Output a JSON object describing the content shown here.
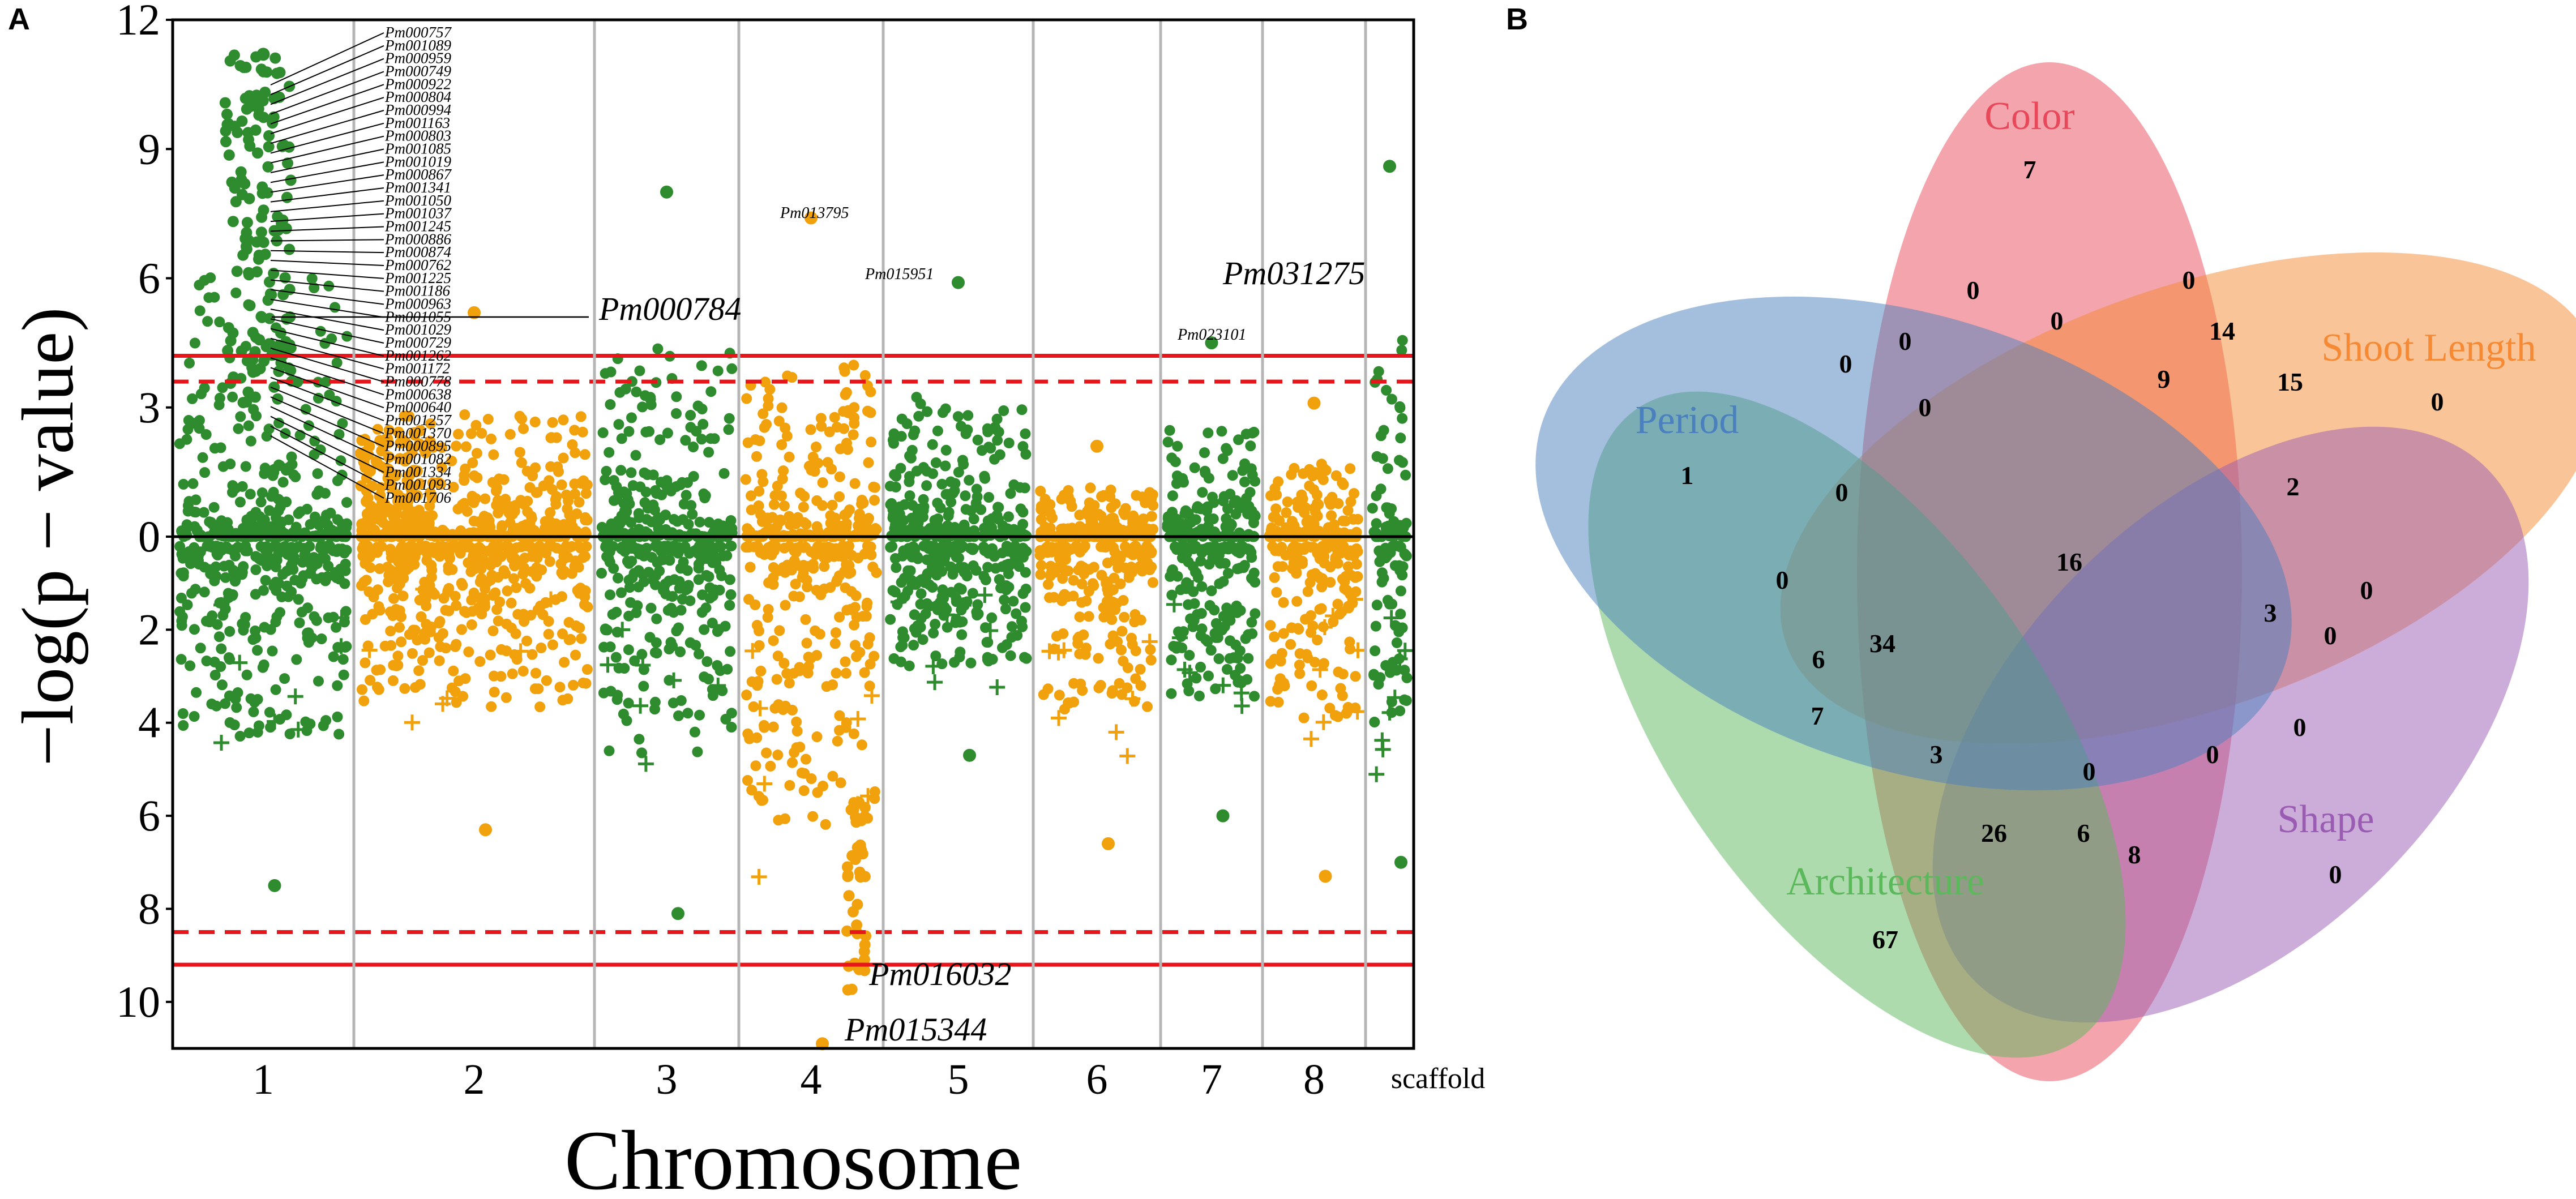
{
  "panels": {
    "a_label": "A",
    "b_label": "B"
  },
  "chart_data": [
    {
      "type": "scatter",
      "subtype": "mirrored-manhattan",
      "title": "",
      "xlabel": "Chromosome",
      "ylabel": "−log(p − value)",
      "ylim_top": [
        0,
        12
      ],
      "ylim_bottom": [
        0,
        11
      ],
      "yticks_top": [
        "0",
        "3",
        "6",
        "9",
        "12"
      ],
      "yticks_bottom": [
        "0",
        "2",
        "4",
        "6",
        "8",
        "10"
      ],
      "categories": [
        "1",
        "2",
        "3",
        "4",
        "5",
        "6",
        "7",
        "8",
        "scaffold"
      ],
      "colors": {
        "odd": "#2e8b2e",
        "even": "#f0a10c",
        "threshold": "#e8161b"
      },
      "thresholds": {
        "top_solid": 4.2,
        "top_dashed": 3.6,
        "bottom_dashed": 8.5,
        "bottom_solid": 9.2
      },
      "chromosome_peaks": {
        "top": [
          11.2,
          5.2,
          8.0,
          7.4,
          5.9,
          2.1,
          4.5,
          3.1,
          8.6
        ],
        "bottom": [
          7.5,
          6.3,
          8.1,
          10.9,
          4.7,
          6.6,
          6.0,
          7.3,
          7.0
        ]
      },
      "chr1_callout_labels": [
        "Pm000757",
        "Pm001089",
        "Pm000959",
        "Pm000749",
        "Pm000922",
        "Pm000804",
        "Pm000994",
        "Pm001163",
        "Pm000803",
        "Pm001085",
        "Pm001019",
        "Pm000867",
        "Pm001341",
        "Pm001050",
        "Pm001037",
        "Pm001245",
        "Pm000886",
        "Pm000874",
        "Pm000762",
        "Pm001225",
        "Pm001186",
        "Pm000963",
        "Pm001055",
        "Pm001029",
        "Pm000729",
        "Pm001262",
        "Pm001172",
        "Pm000778",
        "Pm000638",
        "Pm000640",
        "Pm001257",
        "Pm001370",
        "Pm000895",
        "Pm001082",
        "Pm001334",
        "Pm001093",
        "Pm001706"
      ],
      "annotations": [
        {
          "label": "Pm000784",
          "chr": 1,
          "side": "top",
          "y": 5.0
        },
        {
          "label": "Pm013795",
          "chr": 4,
          "side": "top",
          "y": 7.4
        },
        {
          "label": "Pm015951",
          "chr": 5,
          "side": "top",
          "y": 5.9
        },
        {
          "label": "Pm023101",
          "chr": 7,
          "side": "top",
          "y": 4.5
        },
        {
          "label": "Pm031275",
          "chr": "scaffold",
          "side": "top",
          "y": 5.7
        },
        {
          "label": "Pm016032",
          "chr": 4,
          "side": "bottom",
          "y": 9.6
        },
        {
          "label": "Pm015344",
          "chr": 4,
          "side": "bottom",
          "y": 10.9
        }
      ]
    },
    {
      "type": "venn",
      "sets": [
        {
          "name": "Color",
          "color": "#e8495a",
          "unique": "7"
        },
        {
          "name": "Shoot Length",
          "color": "#f68a34",
          "unique": "0"
        },
        {
          "name": "Shape",
          "color": "#9a5bb3",
          "unique": "0"
        },
        {
          "name": "Architecture",
          "color": "#5bb85b",
          "unique": "67"
        },
        {
          "name": "Period",
          "color": "#4a80bd",
          "unique": "1"
        }
      ],
      "region_counts": [
        "0",
        "0",
        "0",
        "14",
        "0",
        "0",
        "9",
        "15",
        "0",
        "2",
        "0",
        "16",
        "0",
        "0",
        "3",
        "0",
        "6",
        "34",
        "7",
        "3",
        "0",
        "0",
        "0",
        "26",
        "6",
        "8"
      ]
    }
  ]
}
